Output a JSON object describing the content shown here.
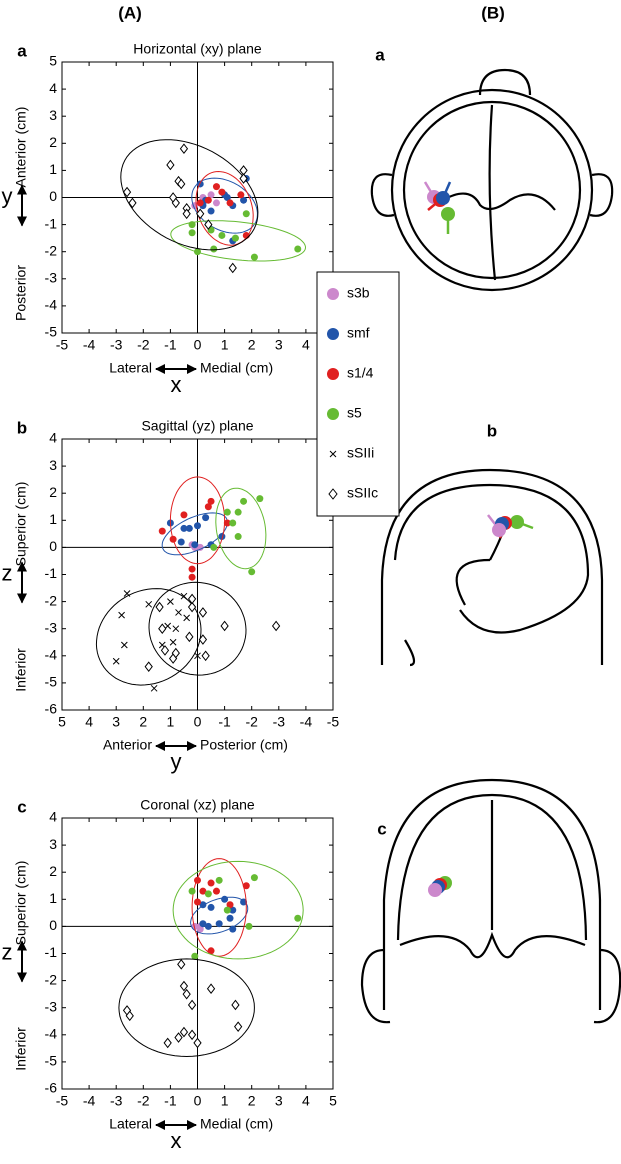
{
  "column_labels": [
    "(A)",
    "(B)"
  ],
  "head_labels": [
    "a",
    "b",
    "c"
  ],
  "chart_data": [
    {
      "type": "scatter",
      "panel": "a",
      "title": "Horizontal (xy) plane",
      "xlabel_left": "Lateral",
      "xlabel_right": "Medial (cm)",
      "xlabel_axis": "x",
      "ylabel_low": "Posterior",
      "ylabel_high": "Anterior (cm)",
      "ylabel_axis": "y",
      "xlim": [
        -5,
        5
      ],
      "ylim": [
        -5,
        5
      ],
      "xticks": [
        -5,
        -4,
        -3,
        -2,
        -1,
        0,
        1,
        2,
        3,
        4,
        5
      ],
      "yticks": [
        -5,
        -4,
        -3,
        -2,
        -1,
        0,
        1,
        2,
        3,
        4,
        5
      ],
      "series": [
        {
          "name": "s3b",
          "color": "#cc88cc",
          "marker": "circle",
          "x": [
            0.2,
            -0.1,
            0.5,
            0.7
          ],
          "y": [
            0,
            -0.3,
            0.1,
            -0.2
          ]
        },
        {
          "name": "smf",
          "color": "#2255aa",
          "marker": "circle",
          "x": [
            0.1,
            0.3,
            1.1,
            1.3,
            1.8,
            1.3,
            0.5,
            1.0,
            0.2,
            1.7
          ],
          "y": [
            0.5,
            -0.1,
            0,
            -0.3,
            0.7,
            -1.6,
            -0.5,
            0.1,
            -0.3,
            -0.1
          ],
          "ellipse": {
            "cx": 1.0,
            "cy": -0.3,
            "rx": 1.3,
            "ry": 0.9,
            "angle": -30
          }
        },
        {
          "name": "s1/4",
          "color": "#e02020",
          "marker": "circle",
          "x": [
            0.7,
            1.2,
            1.8,
            0.4,
            0.9,
            0.1,
            1.6
          ],
          "y": [
            0.4,
            -0.2,
            -1.4,
            -0.1,
            0.2,
            -0.2,
            0.1
          ],
          "ellipse": {
            "cx": 1.0,
            "cy": -0.4,
            "rx": 1.0,
            "ry": 1.4,
            "angle": 20
          }
        },
        {
          "name": "s5",
          "color": "#66bb33",
          "marker": "circle",
          "x": [
            -0.2,
            -0.2,
            0.5,
            0.9,
            1.4,
            2.1,
            3.7,
            1.8,
            0,
            0.6
          ],
          "y": [
            -1.0,
            -1.3,
            -1.2,
            -1.4,
            -1.5,
            -2.2,
            -1.9,
            -0.6,
            -2.0,
            -1.9
          ],
          "ellipse": {
            "cx": 1.5,
            "cy": -1.6,
            "rx": 2.5,
            "ry": 0.7,
            "angle": -6
          }
        },
        {
          "name": "sSIIc",
          "color": "#000000",
          "marker": "diamond",
          "x": [
            -0.5,
            -1,
            -0.7,
            -0.6,
            -2.6,
            -2.4,
            -0.9,
            -0.4,
            -0.4,
            0.1,
            1.7,
            1.7,
            0.4,
            1.3,
            -0.8
          ],
          "y": [
            1.8,
            1.2,
            0.6,
            0.5,
            0.2,
            -0.2,
            0,
            -0.4,
            -0.6,
            -0.6,
            1.0,
            0.7,
            -1.0,
            -2.6,
            -0.2
          ],
          "ellipse": {
            "cx": -0.3,
            "cy": 0.1,
            "rx": 2.7,
            "ry": 1.8,
            "angle": -28
          }
        }
      ]
    },
    {
      "type": "scatter",
      "panel": "b",
      "title": "Sagittal (yz) plane",
      "xlabel_left": "Anterior",
      "xlabel_right": "Posterior (cm)",
      "xlabel_axis": "y",
      "ylabel_low": "Inferior",
      "ylabel_high": "Superior (cm)",
      "ylabel_axis": "z",
      "xlim": [
        5,
        -5
      ],
      "ylim": [
        -6,
        4
      ],
      "xticks": [
        5,
        4,
        3,
        2,
        1,
        0,
        -1,
        -2,
        -3,
        -4,
        -5
      ],
      "yticks": [
        -6,
        -5,
        -4,
        -3,
        -2,
        -1,
        0,
        1,
        2,
        3,
        4
      ],
      "series": [
        {
          "name": "s3b",
          "color": "#cc88cc",
          "marker": "circle",
          "x": [
            0.1,
            0.2,
            -0.1
          ],
          "y": [
            0,
            0.1,
            0
          ]
        },
        {
          "name": "smf",
          "color": "#2255aa",
          "marker": "circle",
          "x": [
            1.0,
            0.5,
            0,
            -0.3,
            0.6,
            -0.5,
            0.1,
            -0.9,
            0.3
          ],
          "y": [
            0.9,
            0.7,
            0.8,
            1.1,
            0.2,
            0.1,
            0.1,
            0.4,
            0.7
          ],
          "ellipse": {
            "cx": 0.1,
            "cy": 0.5,
            "rx": 1.3,
            "ry": 0.6,
            "angle": -25
          }
        },
        {
          "name": "s1/4",
          "color": "#e02020",
          "marker": "circle",
          "x": [
            0.5,
            -0.5,
            -0.4,
            -1.1,
            0.2,
            0.2,
            1.3,
            0.9
          ],
          "y": [
            1.2,
            1.7,
            1.5,
            0.9,
            -0.8,
            -1.1,
            0.6,
            0.3
          ],
          "ellipse": {
            "cx": 0,
            "cy": 1.0,
            "rx": 1.0,
            "ry": 1.6,
            "angle": 0
          }
        },
        {
          "name": "s5",
          "color": "#66bb33",
          "marker": "circle",
          "x": [
            -1.1,
            -1.5,
            -1.7,
            -2.3,
            -1.3,
            -2,
            -1.5,
            -0.6
          ],
          "y": [
            1.3,
            1.3,
            1.7,
            1.8,
            0.9,
            -0.9,
            0.4,
            0
          ],
          "ellipse": {
            "cx": -1.6,
            "cy": 0.7,
            "rx": 0.9,
            "ry": 1.5,
            "angle": -10
          }
        },
        {
          "name": "sSIIi",
          "color": "#000000",
          "marker": "x",
          "x": [
            2.6,
            2.8,
            1.8,
            1.0,
            0.7,
            1.1,
            0.9,
            0.4,
            1.3,
            0,
            1.6,
            3.0,
            2.7,
            0.5,
            0.8
          ],
          "y": [
            -1.7,
            -2.5,
            -2.1,
            -2.0,
            -2.4,
            -2.9,
            -3.5,
            -2.6,
            -3.6,
            -4.0,
            -5.2,
            -4.2,
            -3.6,
            -1.8,
            -3.0
          ],
          "ellipse": {
            "cx": 1.8,
            "cy": -3.3,
            "rx": 2.0,
            "ry": 1.7,
            "angle": -30
          }
        },
        {
          "name": "sSIIc",
          "color": "#000000",
          "marker": "diamond",
          "x": [
            1.4,
            0.2,
            -0.2,
            1.3,
            0.3,
            -0.2,
            1.2,
            0.9,
            1.8,
            -0.3,
            -1.0,
            -2.9,
            0.2,
            0.8
          ],
          "y": [
            -2.2,
            -2.2,
            -2.4,
            -3.0,
            -3.3,
            -3.4,
            -3.8,
            -4.1,
            -4.4,
            -4.0,
            -2.9,
            -2.9,
            -1.9,
            -3.9
          ],
          "ellipse": {
            "cx": 0,
            "cy": -3.0,
            "rx": 1.8,
            "ry": 1.7,
            "angle": 20
          }
        }
      ]
    },
    {
      "type": "scatter",
      "panel": "c",
      "title": "Coronal (xz) plane",
      "xlabel_left": "Lateral",
      "xlabel_right": "Medial (cm)",
      "xlabel_axis": "x",
      "ylabel_low": "Inferior",
      "ylabel_high": "Superior (cm)",
      "ylabel_axis": "z",
      "xlim": [
        -5,
        5
      ],
      "ylim": [
        -6,
        4
      ],
      "xticks": [
        -5,
        -4,
        -3,
        -2,
        -1,
        0,
        1,
        2,
        3,
        4,
        5
      ],
      "yticks": [
        -6,
        -5,
        -4,
        -3,
        -2,
        -1,
        0,
        1,
        2,
        3,
        4
      ],
      "series": [
        {
          "name": "s3b",
          "color": "#cc88cc",
          "marker": "circle",
          "x": [
            0.1,
            0.1,
            -0.1
          ],
          "y": [
            0,
            -0.1,
            0
          ]
        },
        {
          "name": "smf",
          "color": "#2255aa",
          "marker": "circle",
          "x": [
            0.2,
            0.5,
            1.0,
            1.3,
            1.7,
            1.2,
            0.4,
            0.8,
            0.2,
            1.3
          ],
          "y": [
            0.8,
            0.7,
            1.0,
            0.6,
            0.9,
            0.3,
            0,
            0.1,
            0.1,
            -0.1
          ],
          "ellipse": {
            "cx": 0.8,
            "cy": 0.4,
            "rx": 1.1,
            "ry": 0.6,
            "angle": 20
          }
        },
        {
          "name": "s1/4",
          "color": "#e02020",
          "marker": "circle",
          "x": [
            0,
            0.2,
            0.7,
            1.8,
            0.5,
            1.2,
            0.5,
            0
          ],
          "y": [
            1.7,
            1.3,
            1.3,
            1.5,
            -0.9,
            0.8,
            1.6,
            0.9
          ],
          "ellipse": {
            "cx": 0.8,
            "cy": 0.7,
            "rx": 1.0,
            "ry": 1.8,
            "angle": 0
          }
        },
        {
          "name": "s5",
          "color": "#66bb33",
          "marker": "circle",
          "x": [
            -0.2,
            0.4,
            0.8,
            2.1,
            3.7,
            1.9,
            -0.1,
            1.1
          ],
          "y": [
            1.3,
            1.2,
            1.7,
            1.8,
            0.3,
            0,
            -1.1,
            0.6
          ],
          "ellipse": {
            "cx": 1.5,
            "cy": 0.6,
            "rx": 2.4,
            "ry": 1.8,
            "angle": 0
          }
        },
        {
          "name": "sSIIc",
          "color": "#000000",
          "marker": "diamond",
          "x": [
            -0.6,
            -0.5,
            -0.4,
            0.5,
            -2.6,
            -2.5,
            1.4,
            -0.2,
            -0.5,
            -0.2,
            0,
            -1.1,
            1.5,
            -0.7
          ],
          "y": [
            -1.4,
            -2.2,
            -2.5,
            -2.3,
            -3.1,
            -3.3,
            -2.9,
            -2.9,
            -3.9,
            -4.0,
            -4.3,
            -4.3,
            -3.7,
            -4.1
          ],
          "ellipse": {
            "cx": -0.4,
            "cy": -3.0,
            "rx": 2.5,
            "ry": 1.8,
            "angle": 0
          }
        }
      ]
    }
  ]
}
